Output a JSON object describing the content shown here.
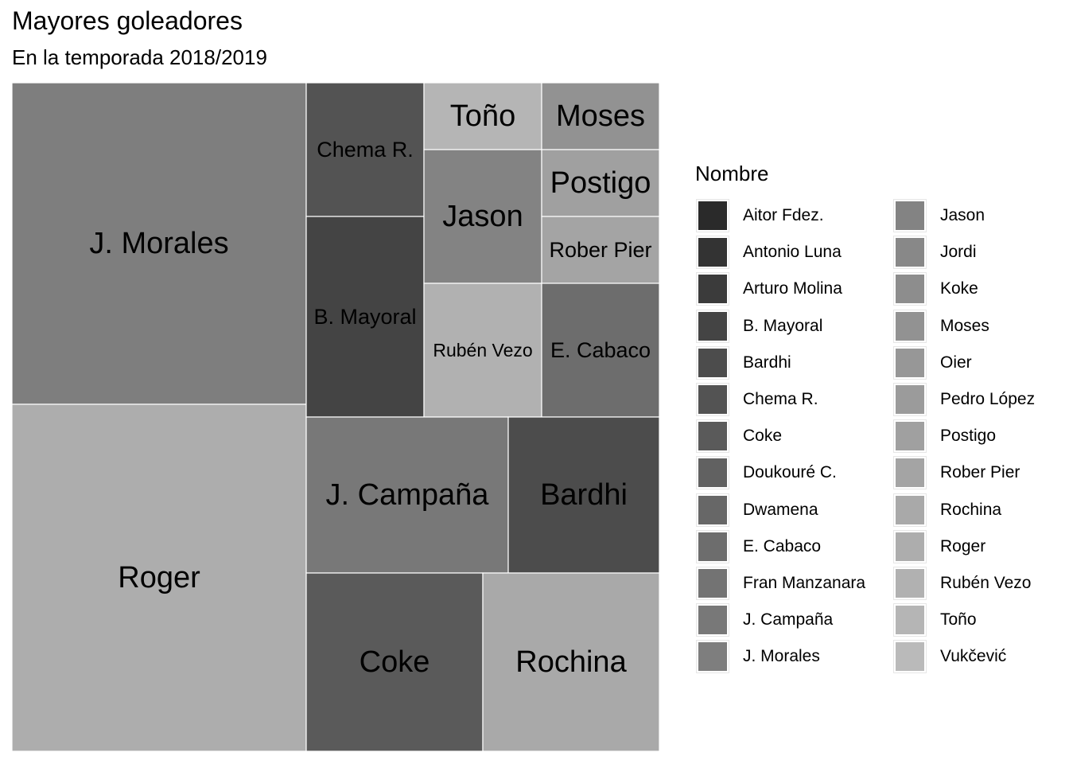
{
  "chart_data": {
    "type": "treemap",
    "title": "Mayores goleadores",
    "subtitle": "En la temporada 2018/2019",
    "legend_title": "Nombre",
    "legend_placement": "right",
    "legend_entries": [
      {
        "label": "Aitor Fdez.",
        "color": "#2a2a2a"
      },
      {
        "label": "Antonio Luna",
        "color": "#333333"
      },
      {
        "label": "Arturo Molina",
        "color": "#3b3b3b"
      },
      {
        "label": "B. Mayoral",
        "color": "#444444"
      },
      {
        "label": "Bardhi",
        "color": "#4c4c4c"
      },
      {
        "label": "Chema R.",
        "color": "#535353"
      },
      {
        "label": "Coke",
        "color": "#5a5a5a"
      },
      {
        "label": "Doukouré C.",
        "color": "#616161"
      },
      {
        "label": "Dwamena",
        "color": "#676767"
      },
      {
        "label": "E. Cabaco",
        "color": "#6d6d6d"
      },
      {
        "label": "Fran Manzanara",
        "color": "#737373"
      },
      {
        "label": "J. Campaña",
        "color": "#787878"
      },
      {
        "label": "J. Morales",
        "color": "#7e7e7e"
      },
      {
        "label": "Jason",
        "color": "#838383"
      },
      {
        "label": "Jordi",
        "color": "#888888"
      },
      {
        "label": "Koke",
        "color": "#8d8d8d"
      },
      {
        "label": "Moses",
        "color": "#929292"
      },
      {
        "label": "Oier",
        "color": "#979797"
      },
      {
        "label": "Pedro López",
        "color": "#9b9b9b"
      },
      {
        "label": "Postigo",
        "color": "#a0a0a0"
      },
      {
        "label": "Rober Pier",
        "color": "#a4a4a4"
      },
      {
        "label": "Rochina",
        "color": "#a9a9a9"
      },
      {
        "label": "Roger",
        "color": "#adadad"
      },
      {
        "label": "Rubén Vezo",
        "color": "#b1b1b1"
      },
      {
        "label": "Toño",
        "color": "#b5b5b5"
      },
      {
        "label": "Vukčević",
        "color": "#bababa"
      }
    ],
    "tiles": [
      {
        "name": "J. Morales",
        "value": 14,
        "color": "#7e7e7e"
      },
      {
        "name": "Roger",
        "value": 15,
        "color": "#adadad"
      },
      {
        "name": "Chema R.",
        "value": 3,
        "color": "#535353"
      },
      {
        "name": "B. Mayoral",
        "value": 5,
        "color": "#444444"
      },
      {
        "name": "Toño",
        "value": 1.5,
        "color": "#b5b5b5"
      },
      {
        "name": "Moses",
        "value": 1.5,
        "color": "#929292"
      },
      {
        "name": "Jason",
        "value": 3,
        "color": "#838383"
      },
      {
        "name": "Postigo",
        "value": 1.5,
        "color": "#a0a0a0"
      },
      {
        "name": "Rober Pier",
        "value": 1.5,
        "color": "#a4a4a4"
      },
      {
        "name": "Rubén Vezo",
        "value": 3,
        "color": "#b1b1b1"
      },
      {
        "name": "E. Cabaco",
        "value": 3,
        "color": "#6d6d6d"
      },
      {
        "name": "J. Campaña",
        "value": 6,
        "color": "#787878"
      },
      {
        "name": "Bardhi",
        "value": 4.5,
        "color": "#4c4c4c"
      },
      {
        "name": "Coke",
        "value": 6,
        "color": "#5a5a5a"
      },
      {
        "name": "Rochina",
        "value": 6,
        "color": "#a9a9a9"
      }
    ]
  }
}
